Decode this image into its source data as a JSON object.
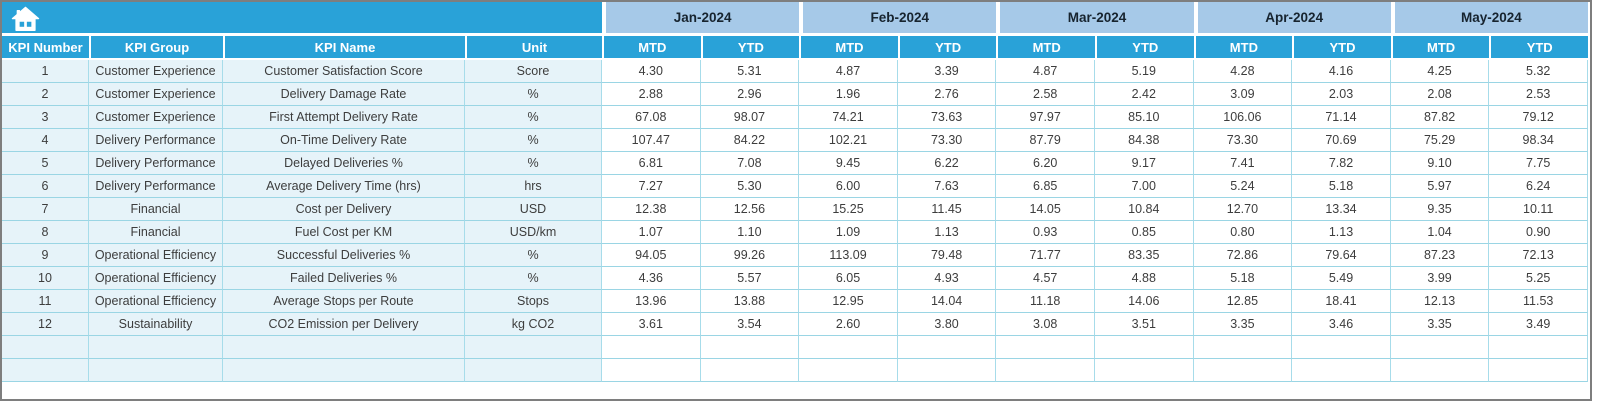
{
  "toolbar": {
    "home_icon": "home-icon"
  },
  "colors": {
    "header_cyan": "#29a2d8",
    "month_header_blue": "#a6c9e8",
    "left_cell_blue": "#e6f3f9",
    "grid_border": "#9ad5e4",
    "frame_border": "#7e7e7e",
    "header_text": "#ffffff",
    "month_text": "#17242f",
    "data_text": "#3d3d3d"
  },
  "table": {
    "left_headers": [
      "KPI Number",
      "KPI Group",
      "KPI Name",
      "Unit"
    ],
    "months": [
      "Jan-2024",
      "Feb-2024",
      "Mar-2024",
      "Apr-2024",
      "May-2024"
    ],
    "sub_headers": [
      "MTD",
      "YTD"
    ],
    "rows": [
      {
        "number": "1",
        "group": "Customer Experience",
        "name": "Customer Satisfaction Score",
        "unit": "Score",
        "values": [
          "4.30",
          "5.31",
          "4.87",
          "3.39",
          "4.87",
          "5.19",
          "4.28",
          "4.16",
          "4.25",
          "5.32"
        ]
      },
      {
        "number": "2",
        "group": "Customer Experience",
        "name": "Delivery Damage Rate",
        "unit": "%",
        "values": [
          "2.88",
          "2.96",
          "1.96",
          "2.76",
          "2.58",
          "2.42",
          "3.09",
          "2.03",
          "2.08",
          "2.53"
        ]
      },
      {
        "number": "3",
        "group": "Customer Experience",
        "name": "First Attempt Delivery Rate",
        "unit": "%",
        "values": [
          "67.08",
          "98.07",
          "74.21",
          "73.63",
          "97.97",
          "85.10",
          "106.06",
          "71.14",
          "87.82",
          "79.12"
        ]
      },
      {
        "number": "4",
        "group": "Delivery Performance",
        "name": "On-Time Delivery Rate",
        "unit": "%",
        "values": [
          "107.47",
          "84.22",
          "102.21",
          "73.30",
          "87.79",
          "84.38",
          "73.30",
          "70.69",
          "75.29",
          "98.34"
        ]
      },
      {
        "number": "5",
        "group": "Delivery Performance",
        "name": "Delayed Deliveries %",
        "unit": "%",
        "values": [
          "6.81",
          "7.08",
          "9.45",
          "6.22",
          "6.20",
          "9.17",
          "7.41",
          "7.82",
          "9.10",
          "7.75"
        ]
      },
      {
        "number": "6",
        "group": "Delivery Performance",
        "name": "Average Delivery Time (hrs)",
        "unit": "hrs",
        "values": [
          "7.27",
          "5.30",
          "6.00",
          "7.63",
          "6.85",
          "7.00",
          "5.24",
          "5.18",
          "5.97",
          "6.24"
        ]
      },
      {
        "number": "7",
        "group": "Financial",
        "name": "Cost per Delivery",
        "unit": "USD",
        "values": [
          "12.38",
          "12.56",
          "15.25",
          "11.45",
          "14.05",
          "10.84",
          "12.70",
          "13.34",
          "9.35",
          "10.11"
        ]
      },
      {
        "number": "8",
        "group": "Financial",
        "name": "Fuel Cost per KM",
        "unit": "USD/km",
        "values": [
          "1.07",
          "1.10",
          "1.09",
          "1.13",
          "0.93",
          "0.85",
          "0.80",
          "1.13",
          "1.04",
          "0.90"
        ]
      },
      {
        "number": "9",
        "group": "Operational Efficiency",
        "name": "Successful Deliveries %",
        "unit": "%",
        "values": [
          "94.05",
          "99.26",
          "113.09",
          "79.48",
          "71.77",
          "83.35",
          "72.86",
          "79.64",
          "87.23",
          "72.13"
        ]
      },
      {
        "number": "10",
        "group": "Operational Efficiency",
        "name": "Failed Deliveries %",
        "unit": "%",
        "values": [
          "4.36",
          "5.57",
          "6.05",
          "4.93",
          "4.57",
          "4.88",
          "5.18",
          "5.49",
          "3.99",
          "5.25"
        ]
      },
      {
        "number": "11",
        "group": "Operational Efficiency",
        "name": "Average Stops per Route",
        "unit": "Stops",
        "values": [
          "13.96",
          "13.88",
          "12.95",
          "14.04",
          "11.18",
          "14.06",
          "12.85",
          "18.41",
          "12.13",
          "11.53"
        ]
      },
      {
        "number": "12",
        "group": "Sustainability",
        "name": "CO2 Emission per Delivery",
        "unit": "kg CO2",
        "values": [
          "3.61",
          "3.54",
          "2.60",
          "3.80",
          "3.08",
          "3.51",
          "3.35",
          "3.46",
          "3.35",
          "3.49"
        ]
      }
    ],
    "empty_row_count": 2
  }
}
